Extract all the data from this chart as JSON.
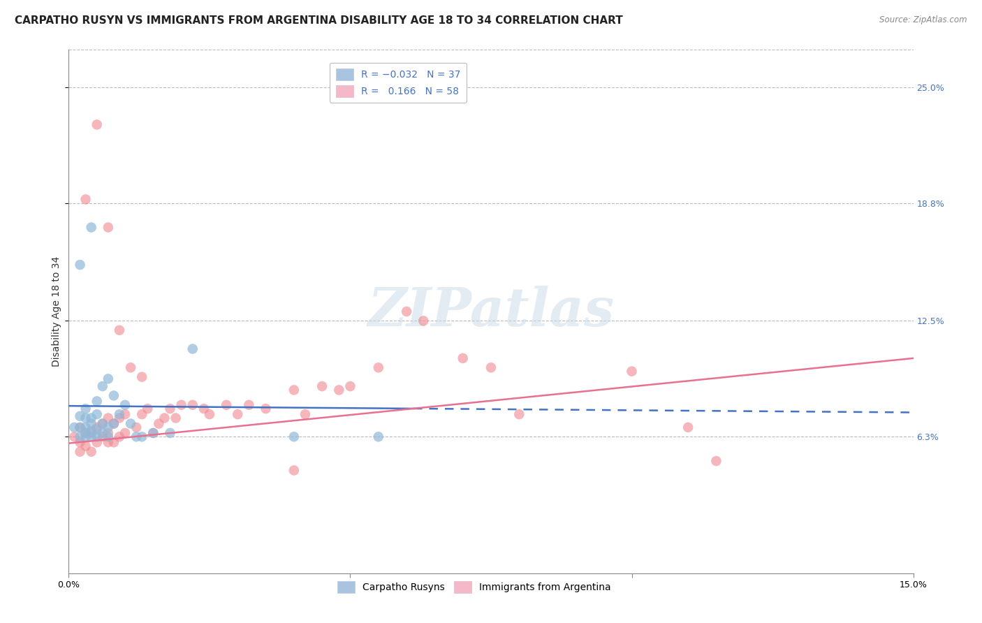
{
  "title": "CARPATHO RUSYN VS IMMIGRANTS FROM ARGENTINA DISABILITY AGE 18 TO 34 CORRELATION CHART",
  "source": "Source: ZipAtlas.com",
  "ylabel": "Disability Age 18 to 34",
  "xlim": [
    0.0,
    0.15
  ],
  "ylim": [
    -0.01,
    0.27
  ],
  "ytick_positions": [
    0.063,
    0.125,
    0.188,
    0.25
  ],
  "ytick_labels": [
    "6.3%",
    "12.5%",
    "18.8%",
    "25.0%"
  ],
  "watermark": "ZIPatlas",
  "blue_color": "#90b8d8",
  "pink_color": "#f08890",
  "blue_line_color": "#4472c4",
  "pink_line_color": "#e87090",
  "grid_color": "#bbbbbb",
  "background_color": "#ffffff",
  "title_fontsize": 11,
  "axis_label_fontsize": 10,
  "tick_fontsize": 9,
  "blue_scatter_x": [
    0.001,
    0.002,
    0.002,
    0.002,
    0.003,
    0.003,
    0.003,
    0.003,
    0.003,
    0.004,
    0.004,
    0.004,
    0.004,
    0.005,
    0.005,
    0.005,
    0.005,
    0.006,
    0.006,
    0.006,
    0.007,
    0.007,
    0.007,
    0.008,
    0.008,
    0.009,
    0.01,
    0.011,
    0.012,
    0.013,
    0.015,
    0.018,
    0.022,
    0.04,
    0.002,
    0.004,
    0.055
  ],
  "blue_scatter_y": [
    0.068,
    0.063,
    0.068,
    0.074,
    0.063,
    0.065,
    0.068,
    0.073,
    0.078,
    0.063,
    0.066,
    0.07,
    0.073,
    0.063,
    0.067,
    0.075,
    0.082,
    0.065,
    0.07,
    0.09,
    0.063,
    0.068,
    0.094,
    0.07,
    0.085,
    0.075,
    0.08,
    0.07,
    0.063,
    0.063,
    0.065,
    0.065,
    0.11,
    0.063,
    0.155,
    0.175,
    0.063
  ],
  "pink_scatter_x": [
    0.001,
    0.002,
    0.002,
    0.002,
    0.003,
    0.003,
    0.004,
    0.004,
    0.005,
    0.005,
    0.006,
    0.006,
    0.007,
    0.007,
    0.007,
    0.008,
    0.008,
    0.009,
    0.009,
    0.01,
    0.01,
    0.012,
    0.013,
    0.014,
    0.015,
    0.016,
    0.017,
    0.018,
    0.019,
    0.02,
    0.022,
    0.024,
    0.025,
    0.028,
    0.03,
    0.032,
    0.035,
    0.04,
    0.042,
    0.045,
    0.048,
    0.05,
    0.055,
    0.06,
    0.063,
    0.07,
    0.075,
    0.08,
    0.1,
    0.11,
    0.003,
    0.005,
    0.007,
    0.009,
    0.011,
    0.013,
    0.04,
    0.115
  ],
  "pink_scatter_y": [
    0.063,
    0.055,
    0.06,
    0.068,
    0.058,
    0.065,
    0.055,
    0.065,
    0.06,
    0.068,
    0.063,
    0.07,
    0.06,
    0.065,
    0.073,
    0.06,
    0.07,
    0.063,
    0.073,
    0.065,
    0.075,
    0.068,
    0.075,
    0.078,
    0.065,
    0.07,
    0.073,
    0.078,
    0.073,
    0.08,
    0.08,
    0.078,
    0.075,
    0.08,
    0.075,
    0.08,
    0.078,
    0.088,
    0.075,
    0.09,
    0.088,
    0.09,
    0.1,
    0.13,
    0.125,
    0.105,
    0.1,
    0.075,
    0.098,
    0.068,
    0.19,
    0.23,
    0.175,
    0.12,
    0.1,
    0.095,
    0.045,
    0.05
  ],
  "blue_line_y0": 0.0795,
  "blue_line_y1": 0.076,
  "pink_line_y0": 0.0595,
  "pink_line_y1": 0.105
}
